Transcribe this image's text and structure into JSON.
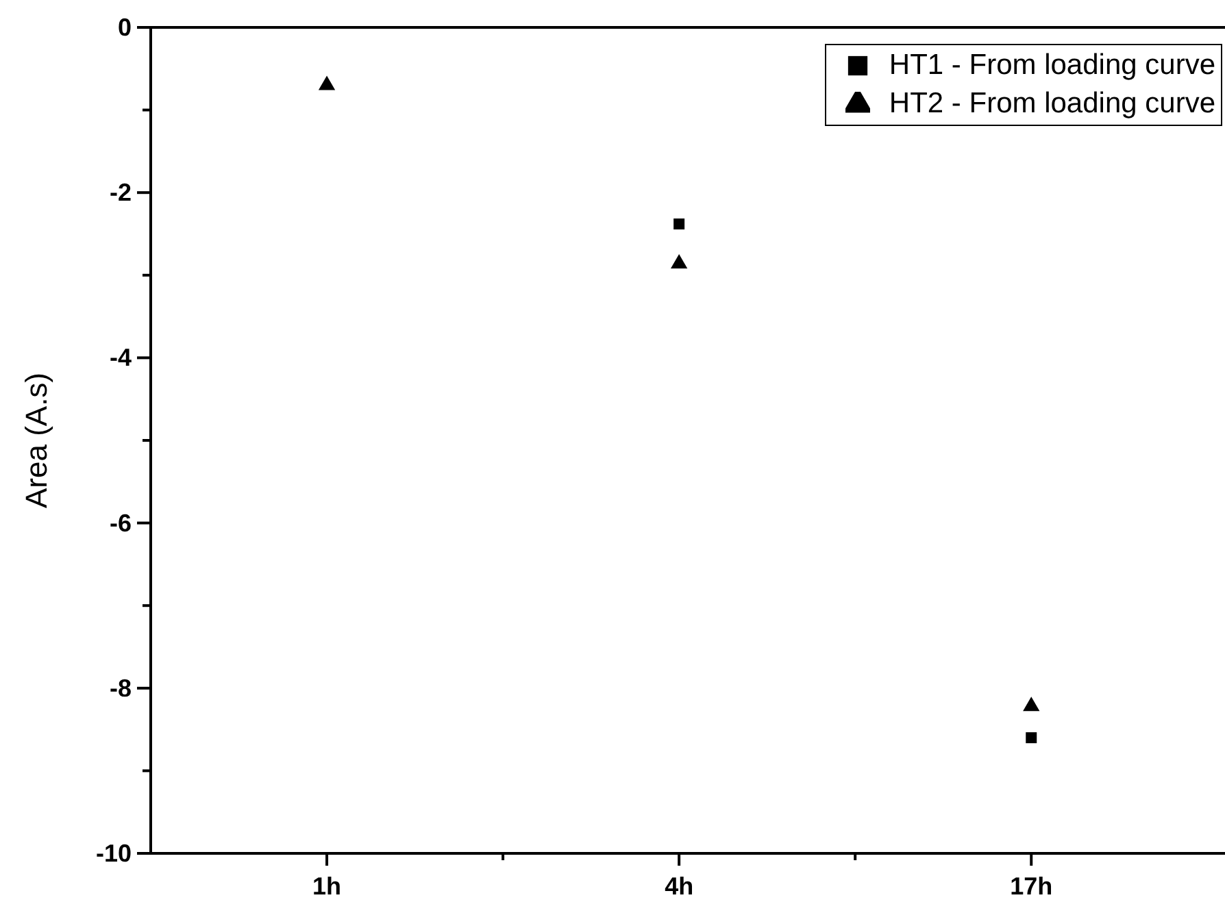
{
  "chart_data": {
    "type": "scatter",
    "ylabel": "Area (A.s)",
    "categories": [
      "1h",
      "4h",
      "17h"
    ],
    "series": [
      {
        "name": "HT1 - From loading curve",
        "color": "#000000",
        "marker": "square",
        "values": [
          null,
          -2.38,
          -8.6
        ]
      },
      {
        "name": "HT2 - From loading curve",
        "color": "#000000",
        "marker": "triangle",
        "values": [
          -0.7,
          -2.86,
          -8.22
        ]
      }
    ],
    "ylim": [
      -10,
      0
    ],
    "yticks": [
      -10,
      {
        "value": -9,
        "label": null
      },
      -8,
      {
        "value": -7,
        "label": null
      },
      -6,
      {
        "value": -5,
        "label": null
      },
      -4,
      {
        "value": -3,
        "label": null
      },
      -2,
      {
        "value": -1,
        "label": null
      },
      0
    ],
    "legend": "top right",
    "grid": false
  }
}
